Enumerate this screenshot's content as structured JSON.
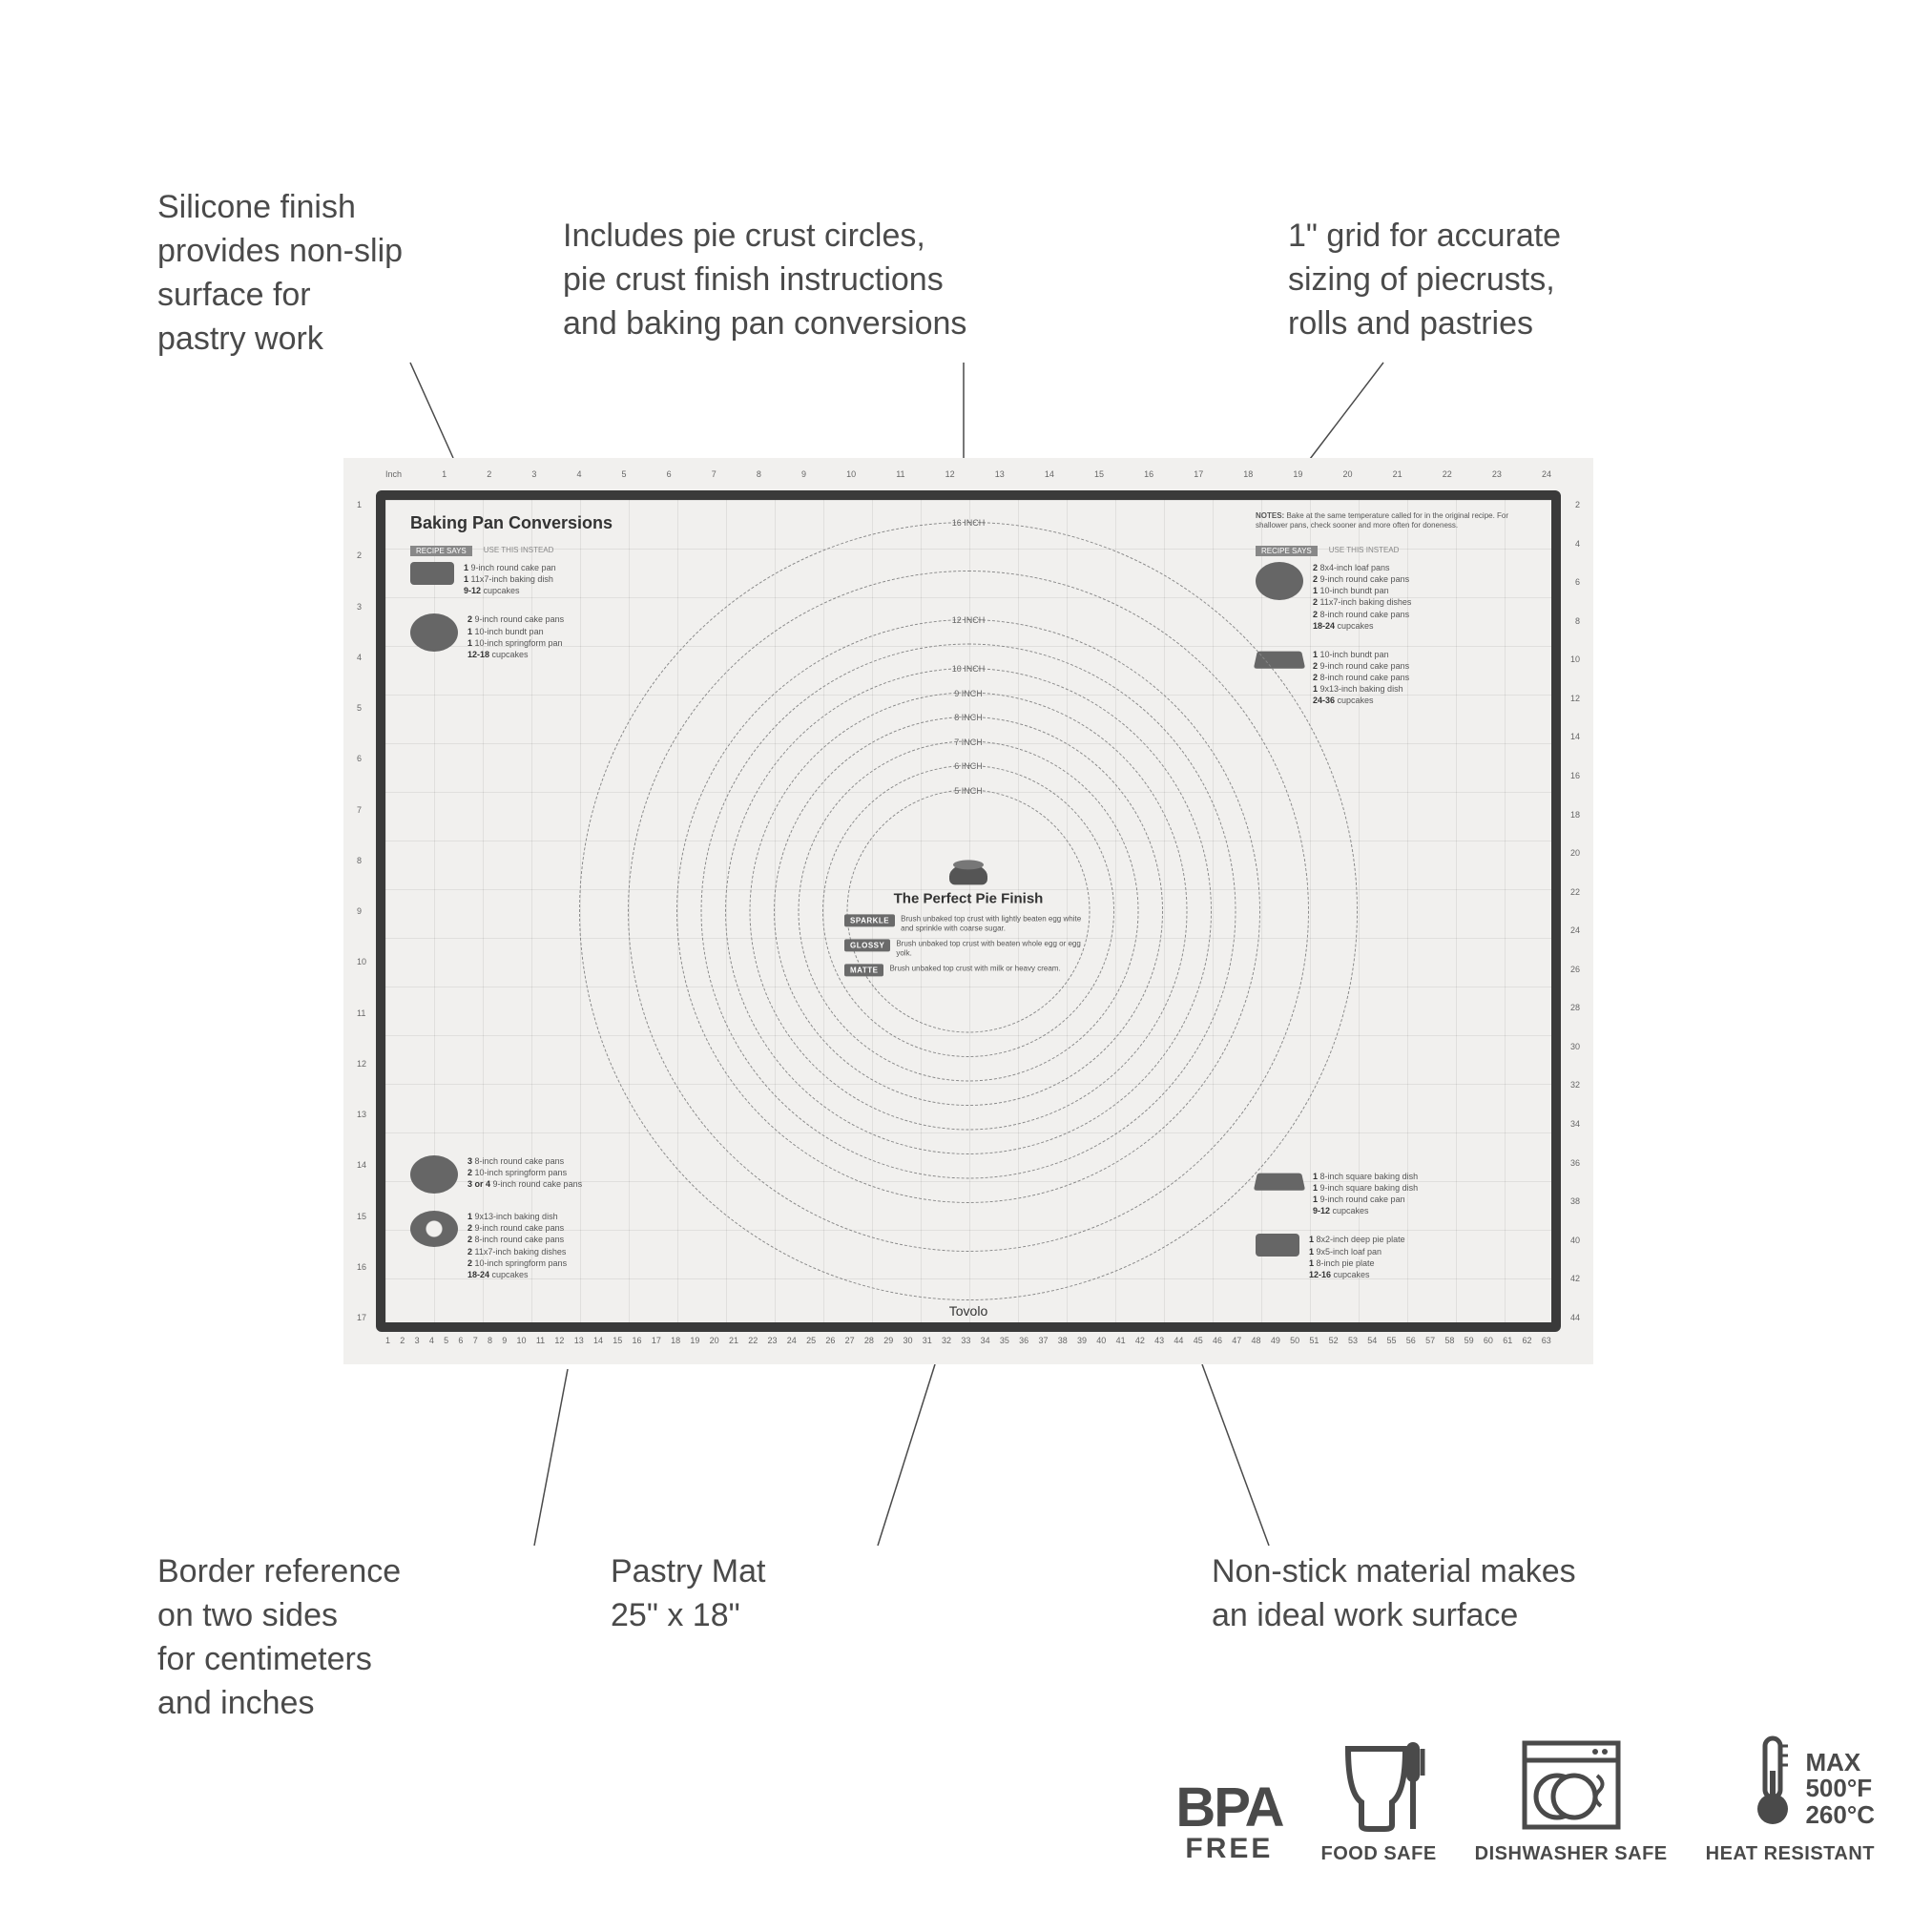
{
  "colors": {
    "text": "#4a4a4a",
    "mat_bg": "#f1f0ee",
    "frame": "#3a3a3a",
    "grid": "rgba(0,0,0,0.07)",
    "icon_fill": "#666666"
  },
  "callouts": {
    "top_left": "Silicone finish\nprovides non-slip\nsurface for\npastry work",
    "top_mid": "Includes pie crust circles,\npie crust finish instructions\nand baking pan conversions",
    "top_right": "1\" grid for accurate\nsizing of piecrusts,\nrolls and pastries",
    "bot_left": "Border reference\non two sides\nfor centimeters\nand inches",
    "bot_mid": "Pastry Mat\n25\" x 18\"",
    "bot_right": "Non-stick material makes\nan ideal work surface"
  },
  "mat": {
    "brand": "Tovolo",
    "ruler_inches": [
      "Inch",
      "1",
      "2",
      "3",
      "4",
      "5",
      "6",
      "7",
      "8",
      "9",
      "10",
      "11",
      "12",
      "13",
      "14",
      "15",
      "16",
      "17",
      "18",
      "19",
      "20",
      "21",
      "22",
      "23",
      "24"
    ],
    "ruler_left_in": [
      "1",
      "2",
      "3",
      "4",
      "5",
      "6",
      "7",
      "8",
      "9",
      "10",
      "11",
      "12",
      "13",
      "14",
      "15",
      "16",
      "17"
    ],
    "ruler_right_cm": [
      "2",
      "4",
      "6",
      "8",
      "10",
      "12",
      "14",
      "16",
      "18",
      "20",
      "22",
      "24",
      "26",
      "28",
      "30",
      "32",
      "34",
      "36",
      "38",
      "40",
      "42",
      "44"
    ],
    "ruler_bottom_cm": [
      "1",
      "2",
      "3",
      "4",
      "5",
      "6",
      "7",
      "8",
      "9",
      "10",
      "11",
      "12",
      "13",
      "14",
      "15",
      "16",
      "17",
      "18",
      "19",
      "20",
      "21",
      "22",
      "23",
      "24",
      "25",
      "26",
      "27",
      "28",
      "29",
      "30",
      "31",
      "32",
      "33",
      "34",
      "35",
      "36",
      "37",
      "38",
      "39",
      "40",
      "41",
      "42",
      "43",
      "44",
      "45",
      "46",
      "47",
      "48",
      "49",
      "50",
      "51",
      "52",
      "53",
      "54",
      "55",
      "56",
      "57",
      "58",
      "59",
      "60",
      "61",
      "62",
      "63"
    ],
    "circle_diameters_in": [
      5,
      6,
      7,
      8,
      9,
      10,
      11,
      12,
      14,
      16
    ],
    "circle_labels": [
      "5 INCH",
      "6 INCH",
      "7 INCH",
      "8 INCH",
      "9 INCH",
      "10 INCH",
      "12 INCH",
      "16 INCH"
    ],
    "title_conversions": "Baking Pan Conversions",
    "header_left": "RECIPE SAYS",
    "header_right": "USE THIS INSTEAD",
    "notes": "NOTES: Bake at the same temperature called for in the original recipe. For shallower pans, check sooner and more often for doneness.",
    "center_title": "The Perfect Pie Finish",
    "finishes": [
      {
        "tag": "SPARKLE",
        "text": "Brush unbaked top crust with lightly beaten egg white and sprinkle with coarse sugar."
      },
      {
        "tag": "GLOSSY",
        "text": "Brush unbaked top crust with beaten whole egg or egg yolk."
      },
      {
        "tag": "MATTE",
        "text": "Brush unbaked top crust with milk or heavy cream."
      }
    ],
    "conversions": [
      {
        "icon": "loaf",
        "pos": "tl1",
        "lines": [
          "1 9-inch round cake pan",
          "1 11x7-inch baking dish",
          "9-12 cupcakes"
        ]
      },
      {
        "icon": "round",
        "pos": "tl2",
        "lines": [
          "2 9-inch round cake pans",
          "1 10-inch bundt pan",
          "1 10-inch springform pan",
          "12-18 cupcakes"
        ]
      },
      {
        "icon": "round",
        "pos": "bl1",
        "lines": [
          "3 8-inch round cake pans",
          "2 10-inch springform pans",
          "3 or 4 9-inch round cake pans"
        ]
      },
      {
        "icon": "bundt",
        "pos": "bl2",
        "lines": [
          "1 9x13-inch baking dish",
          "2 9-inch round cake pans",
          "2 8-inch round cake pans",
          "2 11x7-inch baking dishes",
          "2 10-inch springform pans",
          "18-24 cupcakes"
        ]
      },
      {
        "icon": "round",
        "pos": "tr1",
        "lines": [
          "2 8x4-inch loaf pans",
          "2 9-inch round cake pans",
          "1 10-inch bundt pan",
          "2 11x7-inch baking dishes",
          "2 8-inch round cake pans",
          "18-24 cupcakes"
        ]
      },
      {
        "icon": "dish",
        "pos": "tr2",
        "lines": [
          "1 10-inch bundt pan",
          "2 9-inch round cake pans",
          "2 8-inch round cake pans",
          "1 9x13-inch baking dish",
          "24-36 cupcakes"
        ]
      },
      {
        "icon": "dish",
        "pos": "br1",
        "lines": [
          "1 8-inch square baking dish",
          "1 9-inch square baking dish",
          "1 9-inch round cake pan",
          "9-12 cupcakes"
        ]
      },
      {
        "icon": "loaf",
        "pos": "br2",
        "lines": [
          "1 8x2-inch deep pie plate",
          "1 9x5-inch loaf pan",
          "1 8-inch pie plate",
          "12-16 cupcakes"
        ]
      }
    ]
  },
  "badges": {
    "bpa_top": "BPA",
    "bpa_bot": "FREE",
    "food": "FOOD SAFE",
    "dish": "DISHWASHER SAFE",
    "heat_label": "HEAT RESISTANT",
    "heat_max": "MAX",
    "heat_f": "500°F",
    "heat_c": "260°C"
  }
}
